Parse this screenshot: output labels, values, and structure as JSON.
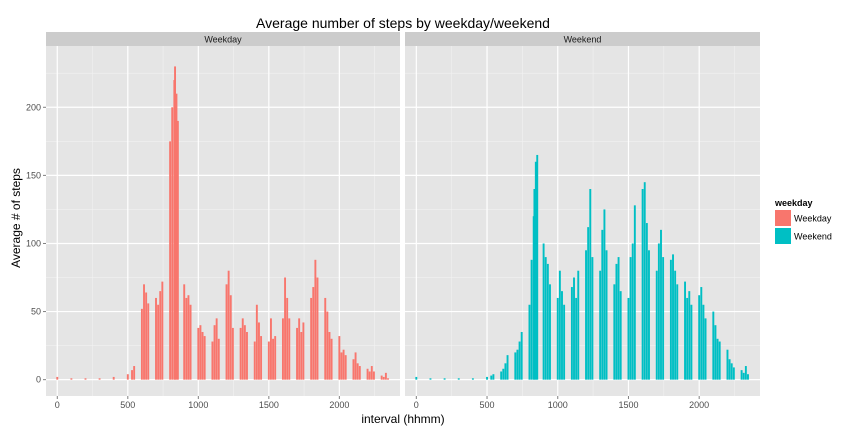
{
  "chart_data": {
    "type": "bar",
    "title": "Average number of steps by weekday/weekend",
    "xlabel": "interval (hhmm)",
    "ylabel": "Average # of steps",
    "xlim": [
      -80,
      2430
    ],
    "ylim": [
      -12,
      245
    ],
    "x_ticks": [
      0,
      500,
      1000,
      1500,
      2000
    ],
    "y_ticks": [
      0,
      50,
      100,
      150,
      200
    ],
    "x_tick_labels": [
      "0",
      "500",
      "1000",
      "1500",
      "2000"
    ],
    "y_tick_labels": [
      "0",
      "50",
      "100",
      "150",
      "200"
    ],
    "grid": true,
    "facets": [
      "Weekday",
      "Weekend"
    ],
    "legend": {
      "title": "weekday",
      "position": "right",
      "entries": [
        "Weekday",
        "Weekend"
      ]
    },
    "colors": {
      "Weekday": "#F8766D",
      "Weekend": "#00BFC4",
      "panel_background": "#e5e5e5",
      "strip_background": "#cccccc",
      "grid": "#ffffff"
    },
    "series": [
      {
        "name": "Weekday",
        "x": [
          0,
          100,
          200,
          300,
          400,
          500,
          530,
          545,
          600,
          615,
          630,
          645,
          700,
          715,
          730,
          745,
          800,
          815,
          830,
          835,
          845,
          855,
          900,
          915,
          930,
          945,
          1000,
          1015,
          1030,
          1045,
          1100,
          1115,
          1130,
          1145,
          1200,
          1215,
          1230,
          1245,
          1300,
          1315,
          1330,
          1345,
          1400,
          1415,
          1430,
          1445,
          1500,
          1515,
          1530,
          1545,
          1600,
          1615,
          1630,
          1645,
          1700,
          1715,
          1730,
          1745,
          1800,
          1815,
          1830,
          1845,
          1900,
          1915,
          1930,
          1945,
          2000,
          2015,
          2030,
          2045,
          2100,
          2115,
          2130,
          2145,
          2200,
          2215,
          2230,
          2245,
          2300,
          2315,
          2330,
          2345
        ],
        "values": [
          2,
          1,
          1,
          1,
          2,
          4,
          7,
          10,
          52,
          70,
          64,
          56,
          60,
          55,
          65,
          72,
          175,
          200,
          220,
          230,
          210,
          190,
          70,
          60,
          62,
          55,
          38,
          40,
          35,
          32,
          28,
          40,
          45,
          30,
          70,
          80,
          62,
          38,
          38,
          45,
          40,
          35,
          28,
          55,
          42,
          32,
          28,
          45,
          30,
          32,
          45,
          75,
          60,
          45,
          38,
          45,
          35,
          42,
          60,
          68,
          88,
          75,
          60,
          50,
          35,
          30,
          32,
          20,
          22,
          18,
          15,
          20,
          12,
          10,
          8,
          6,
          10,
          6,
          3,
          2,
          5,
          1
        ]
      },
      {
        "name": "Weekend",
        "x": [
          0,
          100,
          200,
          300,
          400,
          500,
          530,
          545,
          600,
          615,
          630,
          645,
          700,
          715,
          730,
          745,
          800,
          815,
          830,
          835,
          845,
          855,
          900,
          915,
          930,
          945,
          1000,
          1015,
          1030,
          1045,
          1100,
          1115,
          1130,
          1145,
          1200,
          1215,
          1230,
          1245,
          1300,
          1315,
          1330,
          1345,
          1400,
          1415,
          1430,
          1445,
          1500,
          1515,
          1530,
          1545,
          1600,
          1615,
          1630,
          1645,
          1700,
          1715,
          1730,
          1745,
          1800,
          1815,
          1830,
          1845,
          1900,
          1915,
          1930,
          1945,
          2000,
          2015,
          2030,
          2045,
          2100,
          2115,
          2130,
          2145,
          2200,
          2215,
          2230,
          2245,
          2300,
          2315,
          2330,
          2345
        ],
        "values": [
          2,
          1,
          1,
          1,
          1,
          2,
          3,
          4,
          6,
          8,
          12,
          18,
          20,
          22,
          28,
          35,
          55,
          88,
          120,
          140,
          160,
          165,
          100,
          90,
          85,
          70,
          60,
          80,
          65,
          55,
          68,
          75,
          60,
          80,
          95,
          112,
          140,
          90,
          80,
          110,
          125,
          95,
          70,
          85,
          90,
          65,
          60,
          90,
          100,
          128,
          140,
          145,
          115,
          95,
          80,
          100,
          110,
          90,
          88,
          92,
          80,
          70,
          72,
          60,
          65,
          55,
          62,
          68,
          55,
          45,
          50,
          40,
          30,
          28,
          22,
          15,
          12,
          9,
          7,
          5,
          10,
          4
        ]
      }
    ]
  }
}
